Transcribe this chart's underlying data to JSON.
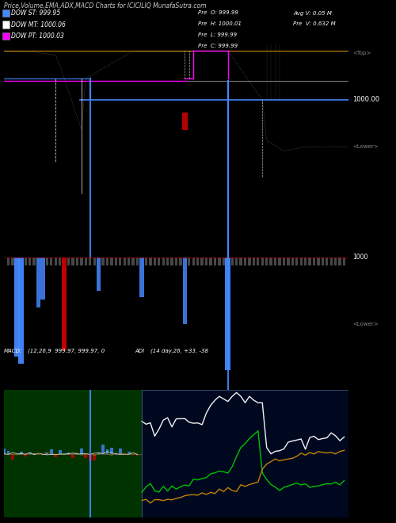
{
  "title": "Price,Volume,EMA,ADX,MACD Charts for ICICILIQ MunafaSutra.com",
  "background_color": "#000000",
  "macd_panel_bg": "#003300",
  "adi_panel_bg": "#000820",
  "legend_items": [
    {
      "label": "DOW ST: 999.95",
      "color": "#4488ff"
    },
    {
      "label": "DOW MT: 1000.06",
      "color": "#ffffff"
    },
    {
      "label": "DOW PT: 1000.03",
      "color": "#ff00ff"
    }
  ],
  "info_text_left": [
    "Pre  O: 999.99",
    "Pre  H: 1000.01",
    "Pre  L: 999.99",
    "Pre  C: 999.99"
  ],
  "info_text_right": [
    "Avg V: 0.05 M",
    "Pre  V: 0.632 M"
  ],
  "num_bars": 80,
  "top_label": "<Top>",
  "lower_label": "<Lower>",
  "price_right_label": "1000.00",
  "vol_right_label": "1000",
  "macd_label": "MACD:",
  "macd_params": "(12,26,9  999.97, 999.97, 0",
  "adi_label": "ADI",
  "adi_params": "(14 day,26, +33, -38",
  "orange_color": "#cc8800",
  "blue_color": "#4488ff",
  "magenta_color": "#ff00ff",
  "red_color": "#cc0000",
  "gray_color": "#888888",
  "green_color": "#00cc00",
  "white_color": "#ffffff",
  "dark_gray": "#444444"
}
